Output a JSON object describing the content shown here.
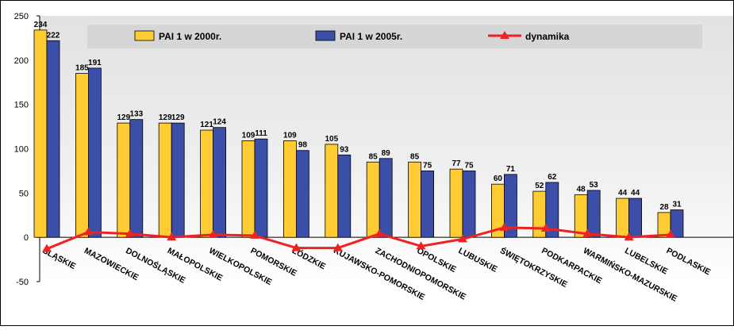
{
  "chart_data": {
    "type": "bar",
    "categories": [
      "ŚLĄSKIE",
      "MAZOWIECKIE",
      "DOLNOŚLĄSKIE",
      "MAŁOPOLSKIE",
      "WIELKOPOLSKIE",
      "POMORSKIE",
      "ŁÓDZKIE",
      "KUJAWSKO-POMORSKIE",
      "ZACHODNIOPOMORSKIE",
      "OPOLSKIE",
      "LUBUSKIE",
      "ŚWIĘTOKRZYSKIE",
      "PODKARPACKIE",
      "WARMIŃSKO-MAZURSKIE",
      "LUBELSKIE",
      "PODLASKIE"
    ],
    "series": [
      {
        "name": "PAI 1 w 2000r.",
        "kind": "bar",
        "color": "#ffcc33",
        "values": [
          234,
          185,
          129,
          129,
          121,
          109,
          109,
          105,
          85,
          85,
          77,
          60,
          52,
          48,
          44,
          28
        ]
      },
      {
        "name": "PAI 1 w 2005r.",
        "kind": "bar",
        "color": "#3c4fa8",
        "values": [
          222,
          191,
          133,
          129,
          124,
          111,
          98,
          93,
          89,
          75,
          75,
          71,
          62,
          53,
          44,
          31
        ]
      },
      {
        "name": "dynamika",
        "kind": "line",
        "color": "#ee2222",
        "values": [
          -13,
          6,
          4,
          0,
          3,
          2,
          -12,
          -12,
          4,
          -10,
          -2,
          11,
          10,
          4,
          0,
          3
        ]
      }
    ],
    "ylim": [
      -50,
      250
    ],
    "yticks": [
      -50,
      0,
      50,
      100,
      150,
      200,
      250
    ],
    "grid": false,
    "legend_position": "top"
  }
}
